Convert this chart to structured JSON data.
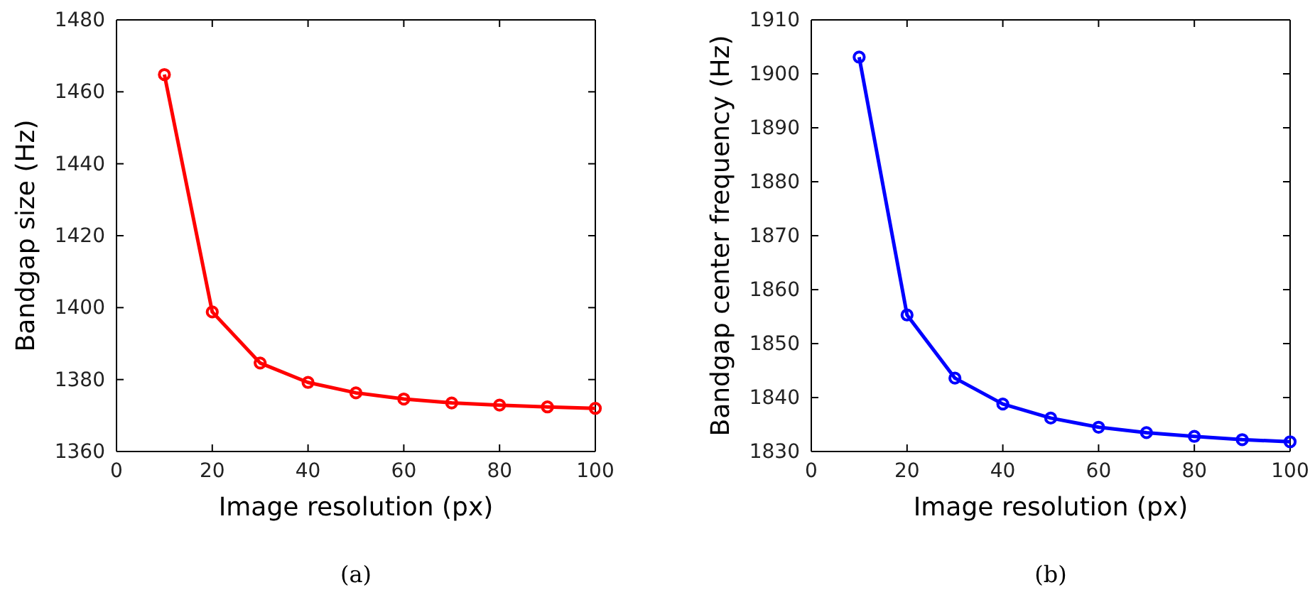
{
  "chart_data": [
    {
      "type": "line",
      "xlabel": "Image resolution (px)",
      "ylabel": "Bandgap size (Hz)",
      "annotations": [
        "(a)"
      ],
      "x": [
        10,
        20,
        30,
        40,
        50,
        60,
        70,
        80,
        90,
        100
      ],
      "xlim": [
        0,
        100
      ],
      "xticks": [
        0,
        20,
        40,
        60,
        80,
        100
      ],
      "ylim": [
        1360,
        1480
      ],
      "yticks": [
        1360,
        1380,
        1400,
        1420,
        1440,
        1460,
        1480
      ],
      "marker": "circle",
      "line_style": "solid",
      "grid": false,
      "series": [
        {
          "color": "#ff0000",
          "values": [
            1464.8,
            1398.8,
            1384.6,
            1379.2,
            1376.3,
            1374.6,
            1373.5,
            1372.9,
            1372.4,
            1372.0
          ]
        }
      ]
    },
    {
      "type": "line",
      "xlabel": "Image resolution (px)",
      "ylabel": "Bandgap center frequency (Hz)",
      "annotations": [
        "(b)"
      ],
      "x": [
        10,
        20,
        30,
        40,
        50,
        60,
        70,
        80,
        90,
        100
      ],
      "xlim": [
        0,
        100
      ],
      "xticks": [
        0,
        20,
        40,
        60,
        80,
        100
      ],
      "ylim": [
        1830,
        1910
      ],
      "yticks": [
        1830,
        1840,
        1850,
        1860,
        1870,
        1880,
        1890,
        1900,
        1910
      ],
      "marker": "circle",
      "line_style": "solid",
      "grid": false,
      "series": [
        {
          "color": "#0000ff",
          "values": [
            1903.1,
            1855.3,
            1843.6,
            1838.8,
            1836.2,
            1834.5,
            1833.5,
            1832.8,
            1832.2,
            1831.8
          ]
        }
      ]
    }
  ]
}
